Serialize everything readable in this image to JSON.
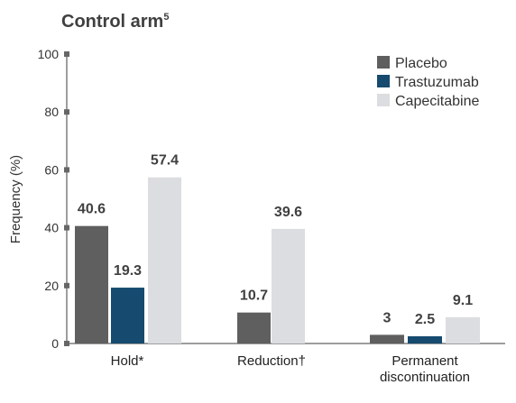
{
  "chart_data": {
    "type": "bar",
    "title": "Control arm",
    "title_superscript": "5",
    "ylabel": "Frequency (%)",
    "xlabel": "",
    "ylim": [
      0,
      100
    ],
    "yticks": [
      0,
      20,
      40,
      60,
      80,
      100
    ],
    "grid": false,
    "legend_position": "top-right",
    "groups": [
      {
        "label_lines": [
          "Hold*"
        ],
        "bars": [
          {
            "series": "Placebo",
            "value": 40.6,
            "label": "40.6"
          },
          {
            "series": "Trastuzumab",
            "value": 19.3,
            "label": "19.3"
          },
          {
            "series": "Capecitabine",
            "value": 57.4,
            "label": "57.4"
          }
        ]
      },
      {
        "label_lines": [
          "Reduction†"
        ],
        "bars": [
          {
            "series": "Placebo",
            "value": 10.7,
            "label": "10.7"
          },
          {
            "series": "Capecitabine",
            "value": 39.6,
            "label": "39.6"
          }
        ]
      },
      {
        "label_lines": [
          "Permanent",
          "discontinuation"
        ],
        "bars": [
          {
            "series": "Placebo",
            "value": 3,
            "label": "3"
          },
          {
            "series": "Trastuzumab",
            "value": 2.5,
            "label": "2.5"
          },
          {
            "series": "Capecitabine",
            "value": 9.1,
            "label": "9.1"
          }
        ]
      }
    ],
    "series": [
      {
        "name": "Placebo",
        "color": "#5f5f5f"
      },
      {
        "name": "Trastuzumab",
        "color": "#164a6e"
      },
      {
        "name": "Capecitabine",
        "color": "#dcdde0"
      }
    ],
    "axis_color": "#7f7f7f"
  }
}
